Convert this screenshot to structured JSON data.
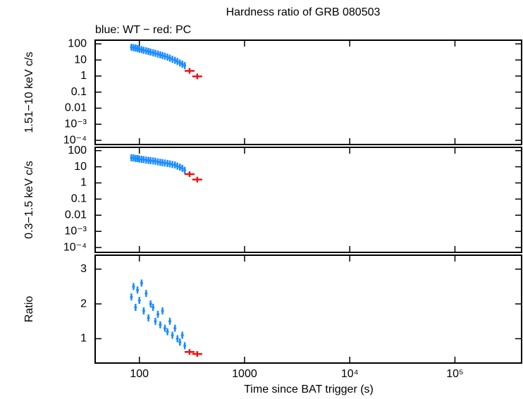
{
  "chart_data": [
    {
      "type": "scatter",
      "title": "Hardness ratio of GRB 080503",
      "subtitle": "blue: WT − red: PC",
      "ylabel": "1.51−10 keV c/s",
      "log_x": true,
      "log_y": true,
      "xlim": [
        38,
        430000
      ],
      "xticks": [
        100,
        1000,
        {
          "value": 10000,
          "label": "10⁴"
        },
        {
          "value": 100000,
          "label": "10⁵"
        }
      ],
      "ylim": [
        5.5e-05,
        170
      ],
      "yticks": [
        {
          "value": 0.0001,
          "label": "10⁻⁴"
        },
        {
          "value": 0.001,
          "label": "10⁻³"
        },
        0.01,
        0.1,
        1,
        10,
        100
      ],
      "series": [
        {
          "color": "#1a8cff",
          "x": [
            84,
            88,
            92,
            96,
            100,
            105,
            110,
            116,
            122,
            128,
            135,
            142,
            150,
            158,
            166,
            175,
            185,
            195,
            206,
            218,
            230,
            243,
            256,
            270
          ],
          "values": [
            62,
            58,
            55,
            52,
            47,
            44,
            40,
            37,
            34,
            31,
            28,
            26,
            23,
            21,
            19,
            17,
            15,
            13,
            11,
            9.5,
            8,
            6.5,
            5.5,
            4.5
          ]
        },
        {
          "color": "#ee1111",
          "x": [
            300,
            355
          ],
          "values": [
            2.1,
            0.95
          ]
        }
      ]
    },
    {
      "type": "scatter",
      "ylabel": "0.3−1.5 keV c/s",
      "log_x": true,
      "log_y": true,
      "xlim": [
        38,
        430000
      ],
      "xticks": [
        100,
        1000,
        {
          "value": 10000,
          "label": "10⁴"
        },
        {
          "value": 100000,
          "label": "10⁵"
        }
      ],
      "ylim": [
        5e-05,
        160
      ],
      "yticks": [
        {
          "value": 0.0001,
          "label": "10⁻⁴"
        },
        {
          "value": 0.001,
          "label": "10⁻³"
        },
        0.01,
        0.1,
        1,
        10,
        100
      ],
      "series": [
        {
          "color": "#1a8cff",
          "x": [
            84,
            88,
            92,
            96,
            100,
            105,
            110,
            116,
            122,
            128,
            135,
            142,
            150,
            158,
            166,
            175,
            185,
            195,
            206,
            218,
            230,
            243,
            256,
            270
          ],
          "values": [
            36,
            35,
            33,
            32,
            30,
            29,
            28,
            26,
            25,
            24,
            23,
            22,
            20,
            19,
            18,
            17,
            16,
            15,
            14,
            13,
            11,
            9.5,
            8,
            6
          ]
        },
        {
          "color": "#ee1111",
          "x": [
            300,
            355
          ],
          "values": [
            3.5,
            1.6
          ]
        }
      ]
    },
    {
      "type": "scatter",
      "ylabel": "Ratio",
      "xlabel": "Time since BAT trigger (s)",
      "log_x": true,
      "log_y": false,
      "xlim": [
        38,
        430000
      ],
      "xticks": [
        100,
        1000,
        {
          "value": 10000,
          "label": "10⁴"
        },
        {
          "value": 100000,
          "label": "10⁵"
        }
      ],
      "ylim": [
        0.3,
        3.4
      ],
      "yticks": [
        1,
        2,
        3
      ],
      "series": [
        {
          "color": "#1a8cff",
          "x": [
            84,
            88,
            92,
            96,
            100,
            105,
            110,
            116,
            122,
            128,
            135,
            142,
            150,
            158,
            166,
            175,
            185,
            195,
            206,
            218,
            230,
            243,
            256,
            270
          ],
          "values": [
            2.2,
            2.5,
            1.9,
            2.4,
            2.1,
            2.6,
            1.8,
            2.3,
            1.6,
            2.0,
            1.9,
            1.5,
            1.7,
            1.4,
            1.8,
            1.3,
            1.2,
            1.5,
            1.1,
            1.3,
            1.0,
            0.9,
            1.1,
            0.8
          ]
        },
        {
          "color": "#ee1111",
          "x": [
            300,
            355
          ],
          "values": [
            0.62,
            0.56
          ]
        }
      ]
    }
  ]
}
